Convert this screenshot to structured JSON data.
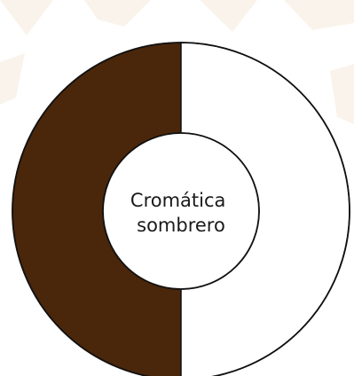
{
  "chart_data": {
    "type": "pie",
    "chart_kind": "donut",
    "center_label": [
      "Cromática",
      "sombrero"
    ],
    "slices": [
      {
        "value": 50,
        "color": "#4a260a"
      },
      {
        "value": 50,
        "color": "#ffffff"
      }
    ],
    "outline_color": "#111111",
    "background_tint": "#f6e9dc"
  }
}
